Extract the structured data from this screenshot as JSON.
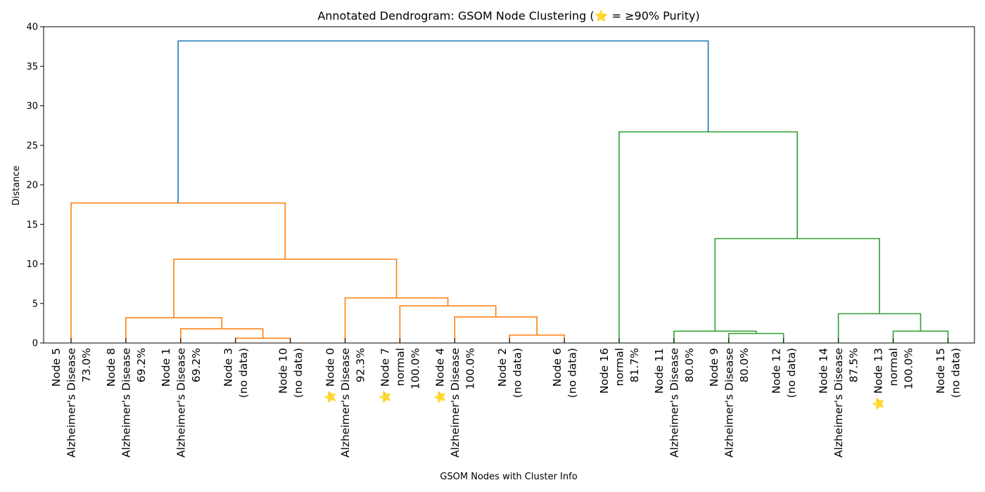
{
  "chart_data": {
    "type": "dendrogram",
    "title": "Annotated Dendrogram: GSOM Node Clustering (⭐ = ≥90% Purity)",
    "xlabel": "GSOM Nodes with Cluster Info",
    "ylabel": "Distance",
    "ylim": [
      0,
      40
    ],
    "yticks": [
      0,
      5,
      10,
      15,
      20,
      25,
      30,
      35,
      40
    ],
    "grid": false,
    "colors": {
      "cluster_a": "#ff7f0e",
      "cluster_b": "#2ca02c",
      "root": "#1f77b4"
    },
    "leaves": [
      {
        "lines": [
          "Node 5",
          "Alzheimer's Disease",
          "73.0%"
        ]
      },
      {
        "lines": [
          "Node 8",
          "Alzheimer's Disease",
          "69.2%"
        ]
      },
      {
        "lines": [
          "Node 1",
          "Alzheimer's Disease",
          "69.2%"
        ]
      },
      {
        "lines": [
          "Node 3",
          "(no data)"
        ]
      },
      {
        "lines": [
          "Node 10",
          "(no data)"
        ]
      },
      {
        "lines": [
          "⭐ Node 0",
          "Alzheimer's Disease",
          "92.3%"
        ]
      },
      {
        "lines": [
          "⭐ Node 7",
          "normal",
          "100.0%"
        ]
      },
      {
        "lines": [
          "⭐ Node 4",
          "Alzheimer's Disease",
          "100.0%"
        ]
      },
      {
        "lines": [
          "Node 2",
          "(no data)"
        ]
      },
      {
        "lines": [
          "Node 6",
          "(no data)"
        ]
      },
      {
        "lines": [
          "Node 16",
          "normal",
          "81.7%"
        ]
      },
      {
        "lines": [
          "Node 11",
          "Alzheimer's Disease",
          "80.0%"
        ]
      },
      {
        "lines": [
          "Node 9",
          "Alzheimer's Disease",
          "80.0%"
        ]
      },
      {
        "lines": [
          "Node 12",
          "(no data)"
        ]
      },
      {
        "lines": [
          "Node 14",
          "Alzheimer's Disease",
          "87.5%"
        ]
      },
      {
        "lines": [
          "⭐ Node 13",
          "normal",
          "100.0%"
        ]
      },
      {
        "lines": [
          "Node 15",
          "(no data)"
        ]
      }
    ],
    "links": [
      {
        "left": 3,
        "right": 4,
        "height": 0.6,
        "color": "cluster_a"
      },
      {
        "left": 2,
        "right": [
          3,
          4
        ],
        "height": 1.8,
        "color": "cluster_a"
      },
      {
        "left": 1,
        "right": [
          2,
          3,
          4
        ],
        "height": 3.2,
        "color": "cluster_a"
      },
      {
        "left": 8,
        "right": 9,
        "height": 1.0,
        "color": "cluster_a"
      },
      {
        "left": 7,
        "right": [
          8,
          9
        ],
        "height": 3.3,
        "color": "cluster_a"
      },
      {
        "left": 6,
        "right": [
          7,
          8,
          9
        ],
        "height": 4.7,
        "color": "cluster_a"
      },
      {
        "left": 5,
        "right": [
          6,
          7,
          8,
          9
        ],
        "height": 5.7,
        "color": "cluster_a"
      },
      {
        "left": [
          1,
          2,
          3,
          4
        ],
        "right": [
          5,
          6,
          7,
          8,
          9
        ],
        "height": 10.6,
        "color": "cluster_a"
      },
      {
        "left": 0,
        "right": [
          1,
          2,
          3,
          4,
          5,
          6,
          7,
          8,
          9
        ],
        "height": 17.7,
        "color": "cluster_a"
      },
      {
        "left": 12,
        "right": 13,
        "height": 1.2,
        "color": "cluster_b"
      },
      {
        "left": 11,
        "right": [
          12,
          13
        ],
        "height": 1.5,
        "color": "cluster_b"
      },
      {
        "left": 15,
        "right": 16,
        "height": 1.5,
        "color": "cluster_b"
      },
      {
        "left": 14,
        "right": [
          15,
          16
        ],
        "height": 3.7,
        "color": "cluster_b"
      },
      {
        "left": [
          11,
          12,
          13
        ],
        "right": [
          14,
          15,
          16
        ],
        "height": 13.2,
        "color": "cluster_b"
      },
      {
        "left": 10,
        "right": [
          11,
          12,
          13,
          14,
          15,
          16
        ],
        "height": 26.7,
        "color": "cluster_b"
      },
      {
        "left": [
          0,
          1,
          2,
          3,
          4,
          5,
          6,
          7,
          8,
          9
        ],
        "right": [
          10,
          11,
          12,
          13,
          14,
          15,
          16
        ],
        "height": 38.2,
        "color": "root"
      }
    ]
  }
}
